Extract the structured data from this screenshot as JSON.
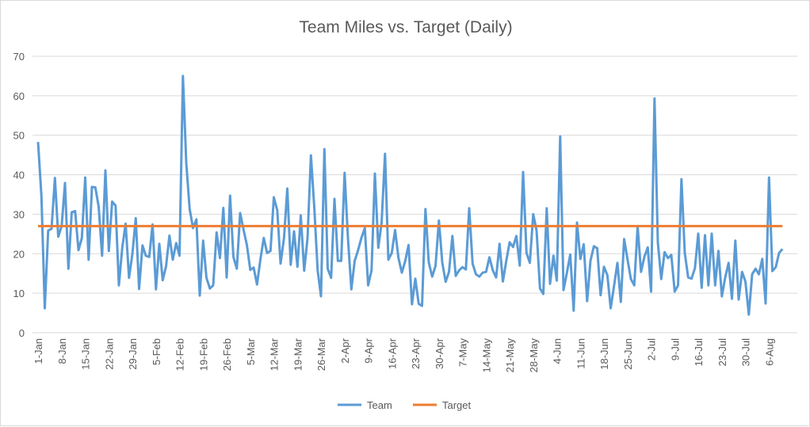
{
  "chart_data": {
    "type": "line",
    "title": "Team Miles vs. Target (Daily)",
    "xlabel": "",
    "ylabel": "",
    "ylim": [
      0,
      70
    ],
    "yticks": [
      0,
      10,
      20,
      30,
      40,
      50,
      60,
      70
    ],
    "grid": true,
    "legend_position": "bottom",
    "x_start": "1-Jan",
    "x_tick_labels": [
      "1-Jan",
      "8-Jan",
      "15-Jan",
      "22-Jan",
      "29-Jan",
      "5-Feb",
      "12-Feb",
      "19-Feb",
      "26-Feb",
      "5-Mar",
      "12-Mar",
      "19-Mar",
      "26-Mar",
      "2-Apr",
      "9-Apr",
      "16-Apr",
      "23-Apr",
      "30-Apr",
      "7-May",
      "14-May",
      "21-May",
      "28-May",
      "4-Jun",
      "11-Jun",
      "18-Jun",
      "25-Jun",
      "2-Jul",
      "9-Jul",
      "16-Jul",
      "23-Jul",
      "30-Jul",
      "6-Aug"
    ],
    "series": [
      {
        "name": "Team",
        "color": "#5B9BD5",
        "values": [
          48.3,
          34.5,
          6.2,
          25.9,
          26.3,
          39.2,
          24.3,
          27,
          37.9,
          16.2,
          30.5,
          30.8,
          20.9,
          24,
          39.3,
          18.5,
          36.9,
          36.8,
          31.9,
          19.5,
          41.1,
          20.7,
          33.2,
          32.2,
          12,
          21.6,
          27.6,
          13.9,
          19.9,
          29,
          11.1,
          22.1,
          19.5,
          19.2,
          27.4,
          11,
          22.5,
          13.3,
          16.8,
          24.6,
          18.5,
          22.7,
          19.5,
          65,
          43,
          31.3,
          26.5,
          28.7,
          9.4,
          23.3,
          13.9,
          11.2,
          12,
          25.4,
          18.9,
          31.6,
          14,
          34.7,
          19.2,
          16.2,
          30.3,
          26.1,
          22.2,
          15.9,
          16.5,
          12.2,
          18.5,
          24,
          20.2,
          20.7,
          34.3,
          31,
          17.5,
          23.9,
          36.5,
          17.2,
          25.7,
          16.7,
          29.7,
          15.7,
          23.9,
          44.9,
          31.9,
          15.8,
          9.2,
          46.5,
          16.2,
          13.9,
          33.9,
          18.2,
          18.2,
          40.5,
          24,
          11,
          18.2,
          20.9,
          24,
          26.5,
          12,
          15.8,
          40.3,
          21.5,
          27.9,
          45.3,
          18.5,
          20.2,
          26,
          18.9,
          15.2,
          18.2,
          22.2,
          7.2,
          13.7,
          7.3,
          6.8,
          31.3,
          17.8,
          14.2,
          16.9,
          28.4,
          17.8,
          12.9,
          15.4,
          24.5,
          14.4,
          15.8,
          16.6,
          16,
          31.5,
          17.5,
          14.8,
          14.2,
          15.2,
          15.4,
          19.1,
          15.8,
          14,
          22.5,
          13,
          18.2,
          22.9,
          21.7,
          24.5,
          17,
          40.7,
          20.2,
          17.7,
          30,
          25.9,
          11.2,
          9.8,
          31.5,
          12.4,
          19.5,
          13.2,
          49.7,
          10.8,
          15.2,
          19.8,
          5.6,
          27.9,
          18.7,
          22.4,
          8,
          18.2,
          21.9,
          21.4,
          9.5,
          16.7,
          14.6,
          6.2,
          11.9,
          17.7,
          7.8,
          23.7,
          18.5,
          13.6,
          12,
          26.9,
          15.4,
          19.2,
          21.6,
          10.4,
          59.3,
          22.9,
          13.6,
          20.4,
          18.9,
          19.7,
          10.4,
          12,
          38.9,
          20.2,
          14,
          13.7,
          16.3,
          25.1,
          11.4,
          24.7,
          12,
          25.1,
          12,
          20.7,
          9.2,
          14,
          17.7,
          8.6,
          23.3,
          8.4,
          15.4,
          13,
          4.6,
          14.8,
          16.2,
          14.8,
          18.7,
          7.4,
          39.3,
          15.6,
          16.6,
          20.2,
          21.2
        ]
      },
      {
        "name": "Target",
        "color": "#ED7D31",
        "constant": 27
      }
    ]
  }
}
